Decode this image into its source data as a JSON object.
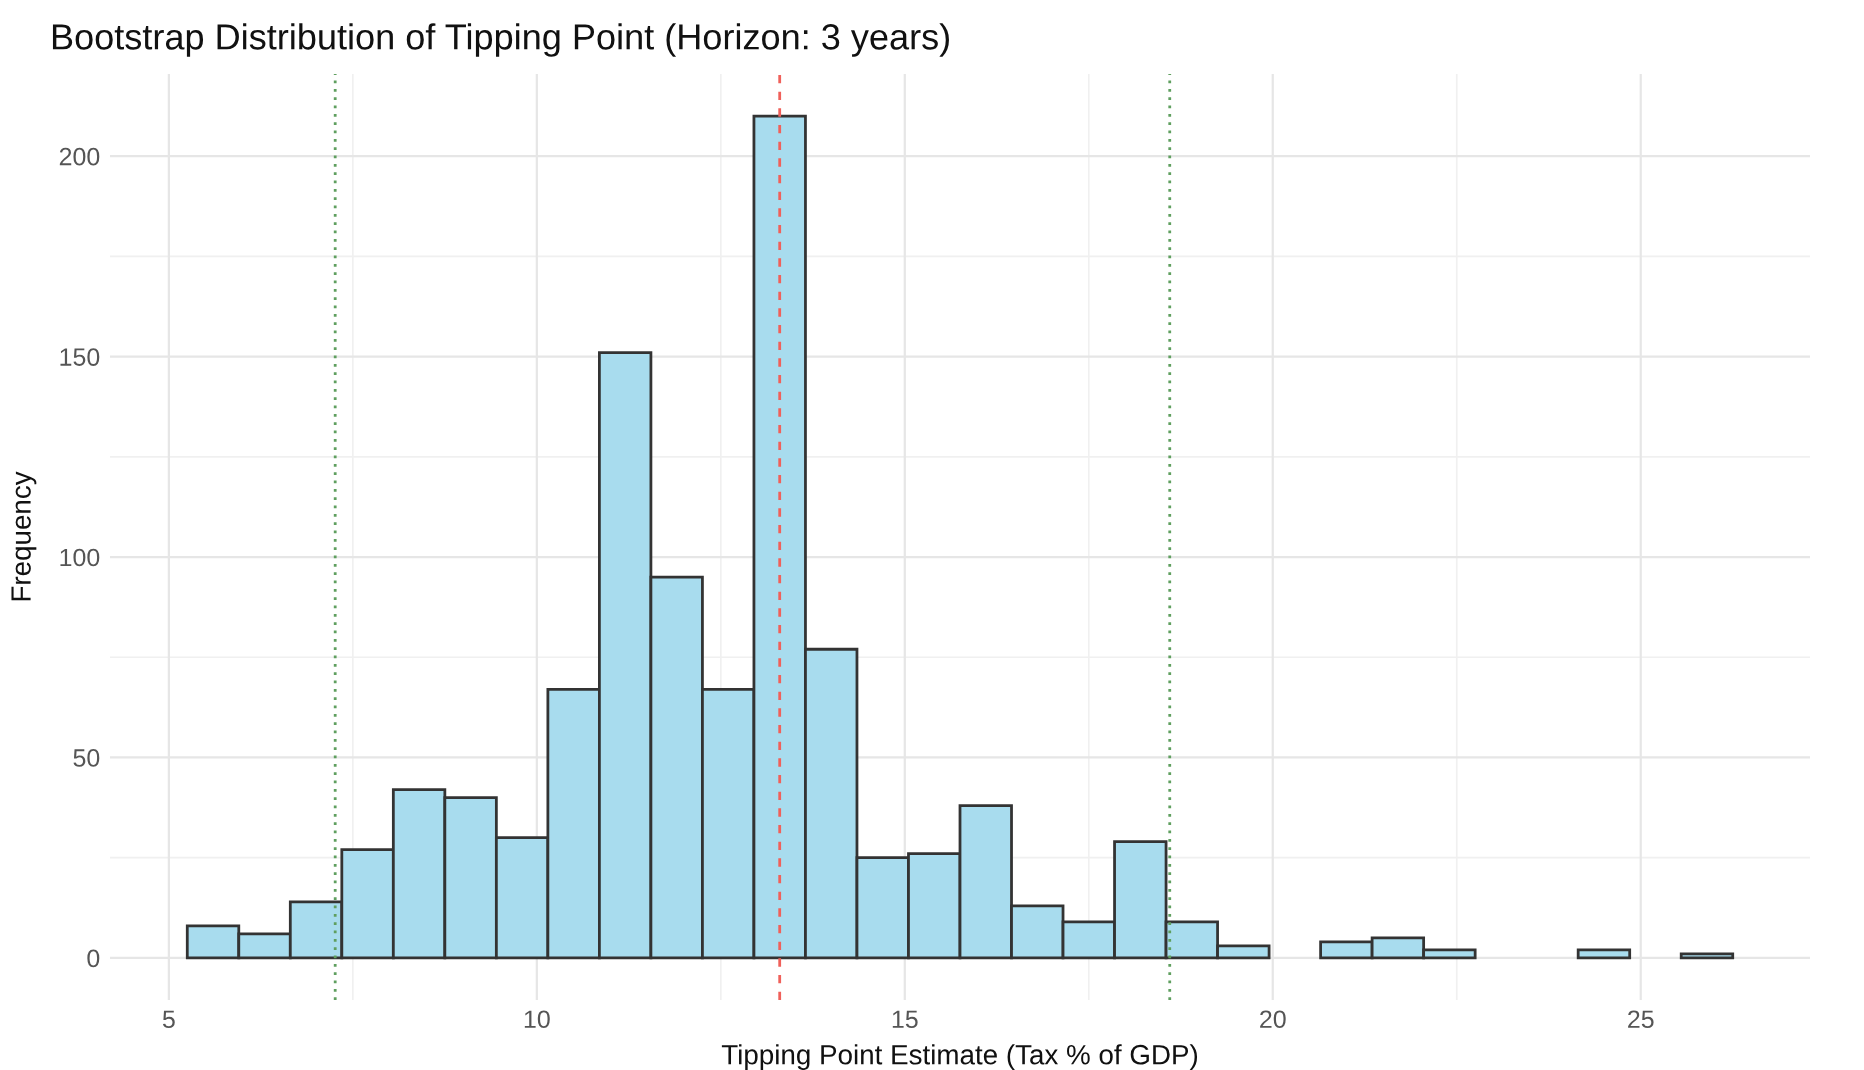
{
  "chart_data": {
    "type": "histogram",
    "title": "Bootstrap Distribution of Tipping Point (Horizon: 3 years)",
    "xlabel": "Tipping Point Estimate (Tax % of GDP)",
    "ylabel": "Frequency",
    "bins": [
      5.25,
      5.95,
      6.65,
      7.35,
      8.05,
      8.75,
      9.45,
      10.15,
      10.85,
      11.55,
      12.25,
      12.95,
      13.65,
      14.35,
      15.05,
      15.75,
      16.45,
      17.15,
      17.85,
      18.55,
      19.25,
      19.95,
      20.65,
      21.35,
      22.05,
      22.75,
      23.45,
      24.15,
      24.85,
      25.55,
      26.25
    ],
    "values": [
      8,
      6,
      14,
      27,
      42,
      40,
      30,
      67,
      151,
      95,
      67,
      210,
      77,
      25,
      26,
      38,
      13,
      9,
      29,
      9,
      3,
      0,
      4,
      5,
      2,
      0,
      0,
      2,
      0,
      1
    ],
    "color": "#a8dcee",
    "xlim": [
      4.2,
      27.3
    ],
    "ylim": [
      -10.5,
      220.5
    ],
    "xticks": [
      5,
      10,
      15,
      20,
      25
    ],
    "yticks": [
      0,
      50,
      100,
      150,
      200
    ],
    "grid": true,
    "ref_lines": [
      {
        "axis": "x",
        "value": 13.3,
        "label": null,
        "color": "#f0605a",
        "line_style": "dashed"
      },
      {
        "axis": "x",
        "value": 7.26,
        "label": null,
        "color": "#5f9f5f",
        "line_style": "dotted"
      },
      {
        "axis": "x",
        "value": 18.6,
        "label": null,
        "color": "#5f9f5f",
        "line_style": "dotted"
      }
    ]
  }
}
